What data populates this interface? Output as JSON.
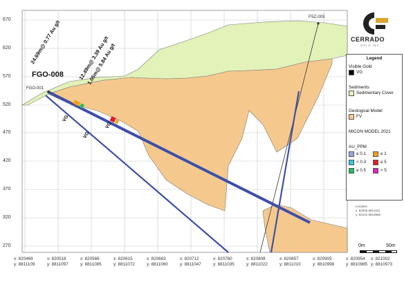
{
  "drill_hole": "FGO-008",
  "collar_label": "FGO-001",
  "fault_label": "FSZ-003",
  "intercepts": [
    {
      "text": "24.69m@ 0.77 Au g/t"
    },
    {
      "text": "12.49m@ 3.39 Au g/t"
    },
    {
      "text": "1.05m@ 5.84 Au g/t"
    }
  ],
  "vg_marks": [
    "VG",
    "VG",
    "VG"
  ],
  "elevations": [
    "670",
    "620",
    "570",
    "520",
    "470",
    "420",
    "370",
    "320",
    "270"
  ],
  "x_ticks": [
    {
      "x": "x: 820469",
      "y": "y: 8811109"
    },
    {
      "x": "x: 820518",
      "y": "y: 8811097"
    },
    {
      "x": "x: 820566",
      "y": "y: 8811085"
    },
    {
      "x": "x: 820615",
      "y": "y: 8811072"
    },
    {
      "x": "x: 820663",
      "y": "y: 8811060"
    },
    {
      "x": "x: 820712",
      "y": "y: 8811047"
    },
    {
      "x": "x: 820760",
      "y": "y: 8811035"
    },
    {
      "x": "x: 820808",
      "y": "y: 8811022"
    },
    {
      "x": "x: 820857",
      "y": "y: 8811010"
    },
    {
      "x": "x: 820905",
      "y": "y: 8810998"
    },
    {
      "x": "x: 820954",
      "y": "y: 8810985"
    },
    {
      "x": "x: 821002",
      "y": "y: 8810973"
    }
  ],
  "logo": {
    "name": "CERRADO",
    "sub": "GOLD INC"
  },
  "legend": {
    "title": "Legend",
    "visible_gold_header": "Visible Gold",
    "vg_label": "VG",
    "sediments_header": "Sediments",
    "sedimentary_cover_label": "Sedimentary Cover",
    "geo_model_header": "Geological Model",
    "fv_label": "FV",
    "micon_model": "MICON MODEL 2021",
    "au_ppm_header": "AU_PPM",
    "au_bins": [
      {
        "label": "≤ 0.1",
        "color": "#9aa6e6"
      },
      {
        "label": "≤ 1",
        "color": "#f0a020"
      },
      {
        "label": "< 0.3",
        "color": "#2ec8e0"
      },
      {
        "label": "≤ 5",
        "color": "#e02020"
      },
      {
        "label": "≤ 0.5",
        "color": "#20c060"
      },
      {
        "label": "> 5",
        "color": "#e020c0"
      }
    ]
  },
  "location_box": {
    "title": "Location",
    "x": "x:  82045  8811115",
    "y": "y:  82101  8810959"
  },
  "scale_bar": {
    "start": "0m",
    "end": "50m"
  },
  "colors": {
    "sediment": "#e2f2b8",
    "fv": "#f5c98e",
    "drill": "#3d4fa8",
    "vg": "#000000"
  }
}
